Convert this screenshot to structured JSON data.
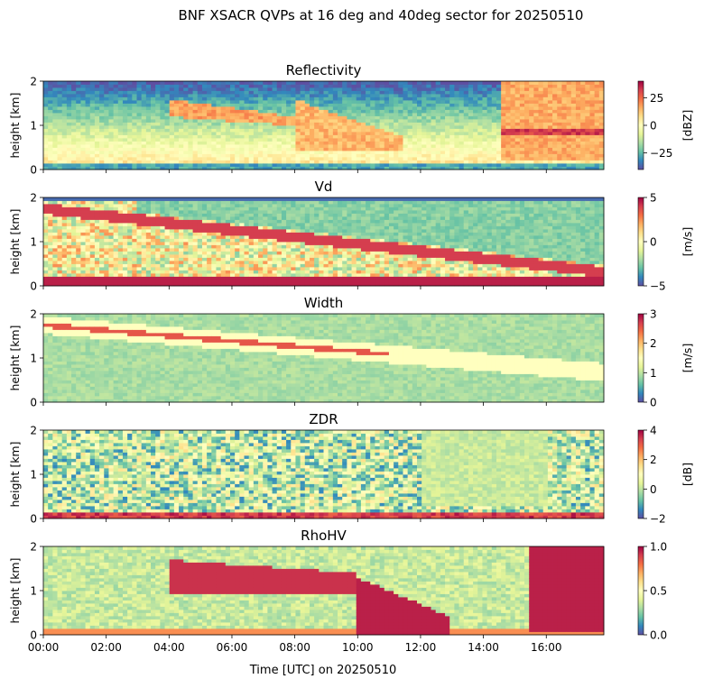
{
  "figure": {
    "suptitle": "BNF XSACR QVPs at 16 deg and 40deg sector for 20250510",
    "xlabel": "Time [UTC] on 20250510"
  },
  "chart_data": [
    {
      "type": "heatmap",
      "title": "Reflectivity",
      "ylabel": "height [km]",
      "ylim": [
        0,
        2
      ],
      "yticks": [
        "0",
        "1",
        "2"
      ],
      "xlim": [
        "00:00",
        "17:50"
      ],
      "colormap": "Spectral_r",
      "clim": [
        -40,
        40
      ],
      "colorbar_label": "[dBZ]",
      "colorbar_ticks": [
        "−25",
        "0",
        "25"
      ],
      "colorbar_tick_values": [
        -25,
        0,
        25
      ]
    },
    {
      "type": "heatmap",
      "title": "Vd",
      "ylabel": "height [km]",
      "ylim": [
        0,
        2
      ],
      "yticks": [
        "0",
        "1",
        "2"
      ],
      "xlim": [
        "00:00",
        "17:50"
      ],
      "colormap": "Spectral_r",
      "clim": [
        -5,
        5
      ],
      "colorbar_label": "[m/s]",
      "colorbar_ticks": [
        "−5",
        "0",
        "5"
      ],
      "colorbar_tick_values": [
        -5,
        0,
        5
      ]
    },
    {
      "type": "heatmap",
      "title": "Width",
      "ylabel": "height [km]",
      "ylim": [
        0,
        2
      ],
      "yticks": [
        "0",
        "1",
        "2"
      ],
      "xlim": [
        "00:00",
        "17:50"
      ],
      "colormap": "Spectral_r",
      "clim": [
        0,
        3
      ],
      "colorbar_label": "[m/s]",
      "colorbar_ticks": [
        "0",
        "1",
        "2",
        "3"
      ],
      "colorbar_tick_values": [
        0,
        1,
        2,
        3
      ]
    },
    {
      "type": "heatmap",
      "title": "ZDR",
      "ylabel": "height [km]",
      "ylim": [
        0,
        2
      ],
      "yticks": [
        "0",
        "1",
        "2"
      ],
      "xlim": [
        "00:00",
        "17:50"
      ],
      "colormap": "Spectral_r",
      "clim": [
        -2,
        4
      ],
      "colorbar_label": "[dB]",
      "colorbar_ticks": [
        "−2",
        "0",
        "2",
        "4"
      ],
      "colorbar_tick_values": [
        -2,
        0,
        2,
        4
      ]
    },
    {
      "type": "heatmap",
      "title": "RhoHV",
      "ylabel": "height [km]",
      "ylim": [
        0,
        2
      ],
      "yticks": [
        "0",
        "1",
        "2"
      ],
      "xlim": [
        "00:00",
        "17:50"
      ],
      "colormap": "Spectral_r",
      "clim": [
        0,
        1
      ],
      "colorbar_label": "",
      "colorbar_ticks": [
        "0.0",
        "0.5",
        "1.0"
      ],
      "colorbar_tick_values": [
        0,
        0.5,
        1
      ]
    }
  ],
  "x_axis": {
    "ticks": [
      "00:00",
      "02:00",
      "04:00",
      "06:00",
      "08:00",
      "10:00",
      "12:00",
      "14:00",
      "16:00"
    ],
    "tick_hours": [
      0,
      2,
      4,
      6,
      8,
      10,
      12,
      14,
      16
    ],
    "max_hour": 17.83
  },
  "colors": {
    "spectral_r": [
      "#5e4fa2",
      "#3288bd",
      "#66c2a5",
      "#abdda4",
      "#e6f598",
      "#ffffbf",
      "#fee08b",
      "#fdae61",
      "#f46d43",
      "#d53e4f",
      "#9e0142"
    ]
  }
}
